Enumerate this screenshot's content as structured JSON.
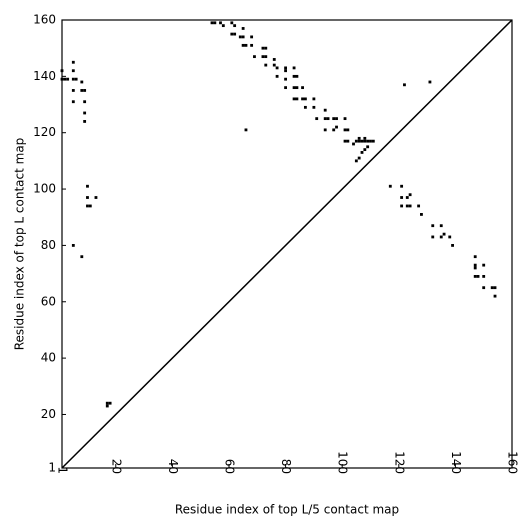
{
  "chart_data": {
    "type": "scatter",
    "xlabel": "Residue index of top L/5 contact map",
    "ylabel": "Residue index of top L contact map",
    "color": "#000000",
    "xlim": [
      1,
      160
    ],
    "ylim": [
      1,
      160
    ],
    "xticks": [
      1,
      20,
      40,
      60,
      80,
      100,
      120,
      140,
      160
    ],
    "yticks": [
      1,
      20,
      40,
      60,
      80,
      100,
      120,
      140,
      160
    ],
    "x": [
      1,
      1,
      2,
      3,
      5,
      5,
      5,
      6,
      5,
      5,
      5,
      8,
      8,
      9,
      9,
      9,
      9,
      8,
      10,
      10,
      10,
      11,
      13,
      17,
      18,
      17,
      54,
      55,
      57,
      58,
      61,
      62,
      61,
      62,
      65,
      64,
      65,
      65,
      66,
      68,
      68,
      69,
      72,
      73,
      72,
      73,
      73,
      66,
      76,
      76,
      77,
      77,
      80,
      80,
      80,
      80,
      83,
      83,
      84,
      83,
      84,
      83,
      84,
      86,
      86,
      87,
      87,
      90,
      90,
      91,
      94,
      94,
      95,
      94,
      97,
      98,
      97,
      98,
      101,
      101,
      102,
      101,
      102,
      104,
      105,
      106,
      107,
      105,
      106,
      107,
      108,
      109,
      108,
      109,
      110,
      111,
      106,
      108,
      117,
      121,
      122,
      131,
      121,
      121,
      123,
      124,
      123,
      124,
      127,
      128,
      132,
      132,
      135,
      135,
      136,
      138,
      139,
      147,
      147,
      147,
      147,
      148,
      150,
      150,
      150,
      153,
      154,
      154
    ],
    "values": [
      142,
      139,
      139,
      139,
      145,
      142,
      139,
      139,
      135,
      131,
      80,
      138,
      135,
      135,
      131,
      127,
      124,
      76,
      101,
      97,
      94,
      94,
      97,
      24,
      24,
      23,
      159,
      159,
      159,
      158,
      159,
      158,
      155,
      155,
      157,
      154,
      154,
      151,
      151,
      154,
      151,
      147,
      150,
      150,
      147,
      147,
      144,
      121,
      146,
      144,
      143,
      140,
      143,
      142,
      139,
      136,
      143,
      140,
      140,
      136,
      136,
      132,
      132,
      136,
      132,
      132,
      129,
      132,
      129,
      125,
      128,
      125,
      125,
      121,
      125,
      125,
      121,
      122,
      125,
      121,
      121,
      117,
      117,
      116,
      117,
      117,
      117,
      110,
      111,
      113,
      114,
      115,
      117,
      117,
      117,
      117,
      118,
      118,
      101,
      101,
      137,
      138,
      97,
      94,
      97,
      98,
      94,
      94,
      94,
      91,
      87,
      83,
      87,
      83,
      84,
      83,
      80,
      76,
      73,
      72,
      69,
      69,
      73,
      69,
      65,
      65,
      65,
      62
    ]
  }
}
